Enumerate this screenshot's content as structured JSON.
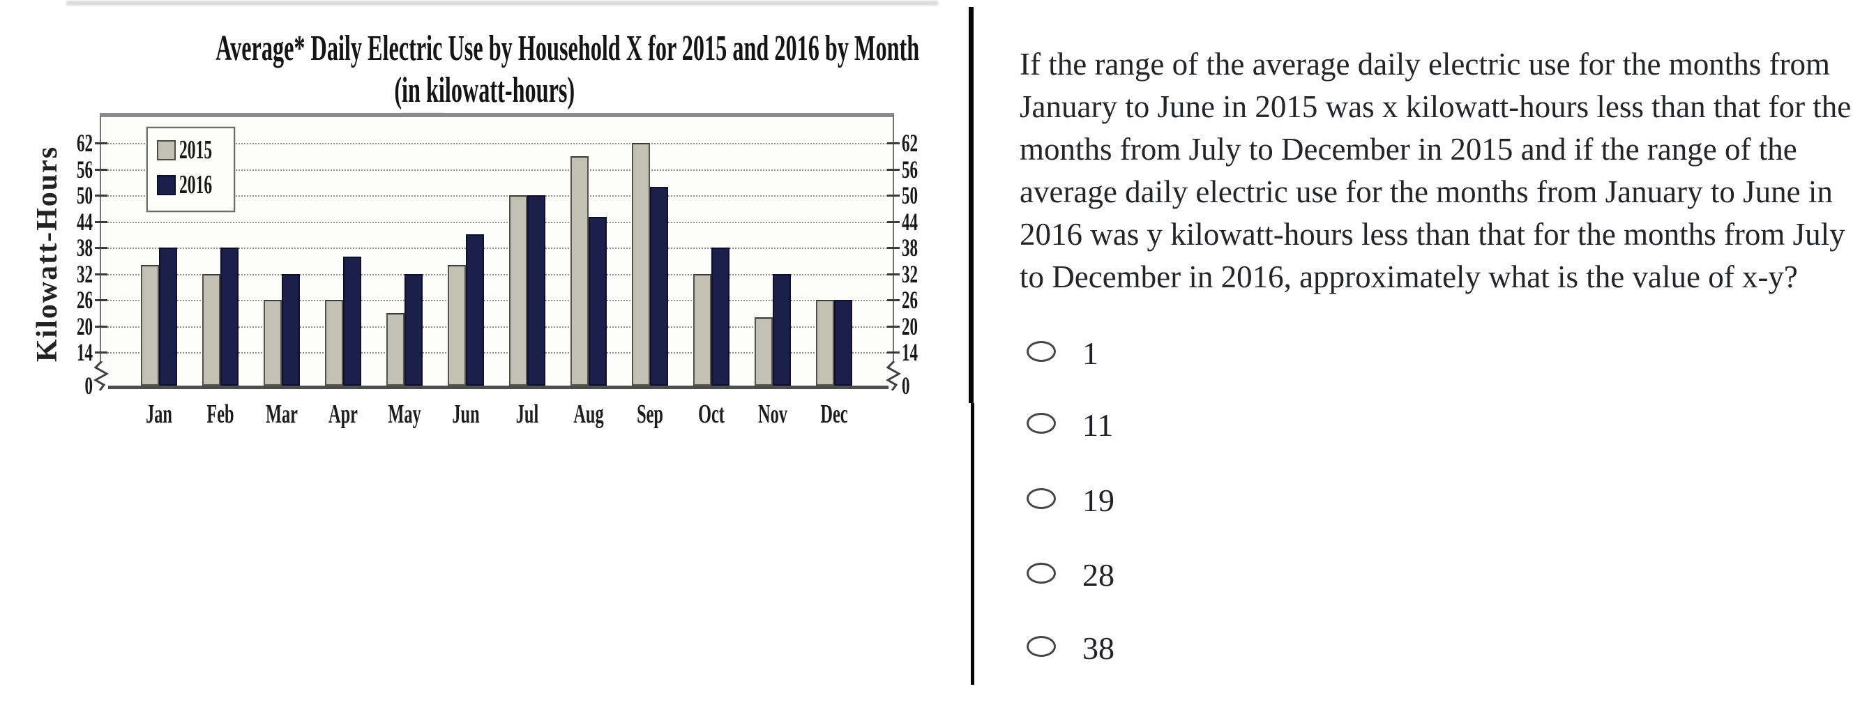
{
  "chart": {
    "title_line1": "Average* Daily Electric Use by Household X for 2015 and 2016 by Month",
    "title_line2": "(in kilowatt-hours)",
    "y_axis_title": "Kilowatt-Hours"
  },
  "chart_data": {
    "type": "bar",
    "title": "Average* Daily Electric Use by Household X for 2015 and 2016 by Month (in kilowatt-hours)",
    "categories": [
      "Jan",
      "Feb",
      "Mar",
      "Apr",
      "May",
      "Jun",
      "Jul",
      "Aug",
      "Sep",
      "Oct",
      "Nov",
      "Dec"
    ],
    "series": [
      {
        "name": "2015",
        "color": "#c2c2b4",
        "values": [
          34,
          32,
          26,
          26,
          23,
          34,
          50,
          59,
          62,
          32,
          22,
          26
        ]
      },
      {
        "name": "2016",
        "color": "#1b1f49",
        "values": [
          38,
          38,
          32,
          36,
          32,
          41,
          50,
          45,
          52,
          38,
          32,
          26
        ]
      }
    ],
    "xlabel": "",
    "ylabel": "Kilowatt-Hours",
    "yticks": [
      0,
      14,
      20,
      26,
      32,
      38,
      44,
      50,
      56,
      62
    ],
    "ylim": [
      0,
      66
    ],
    "axis_break": "between 0 and 14 on both left and right axes",
    "grid": "horizontal dotted gridlines at each labeled tick",
    "legend_position": "upper-left",
    "tick_labels_on_both_sides": true
  },
  "question": {
    "lines": [
      "If the range of the average daily electric use for the months from",
      "January to June in 2015 was x kilowatt-hours less than that for the",
      "months from July to December in 2015 and if the range of the",
      "average daily electric use for the months from January to June in",
      "2016 was y kilowatt-hours less than that for the months from July",
      "to December in 2016, approximately what is the value of x-y?"
    ]
  },
  "options": [
    {
      "label": "1"
    },
    {
      "label": "11"
    },
    {
      "label": "19"
    },
    {
      "label": "28"
    },
    {
      "label": "38"
    }
  ]
}
